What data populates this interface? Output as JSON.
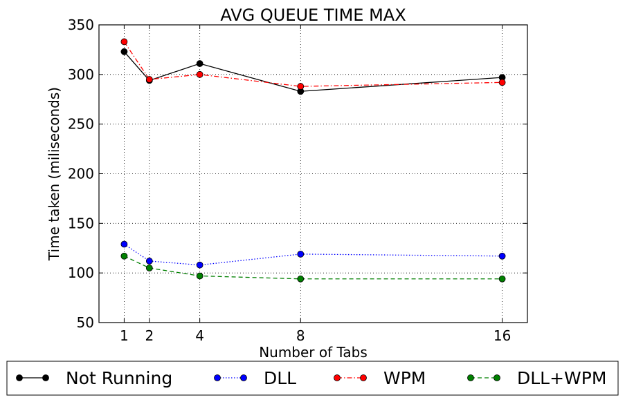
{
  "chart_data": {
    "type": "line",
    "title": "AVG QUEUE TIME MAX",
    "xlabel": "Number of Tabs",
    "ylabel": "Time taken (miliseconds)",
    "x": [
      1,
      2,
      4,
      8,
      16
    ],
    "xticks": [
      1,
      2,
      4,
      8,
      16
    ],
    "xlim": [
      0,
      17
    ],
    "ylim": [
      50,
      350
    ],
    "yticks": [
      50,
      100,
      150,
      200,
      250,
      300,
      350
    ],
    "grid": true,
    "legend_position": "bottom",
    "series": [
      {
        "name": "Not Running",
        "color": "#000000",
        "dash": "solid",
        "values": [
          323,
          294,
          311,
          283,
          297
        ]
      },
      {
        "name": "DLL",
        "color": "#0000ff",
        "dash": "dotted",
        "values": [
          129,
          112,
          108,
          119,
          117
        ]
      },
      {
        "name": "WPM",
        "color": "#ff0000",
        "dash": "dashdot",
        "values": [
          333,
          295,
          300,
          288,
          292
        ]
      },
      {
        "name": "DLL+WPM",
        "color": "#008000",
        "dash": "dashed",
        "values": [
          117,
          105,
          97,
          94,
          94
        ]
      }
    ]
  }
}
